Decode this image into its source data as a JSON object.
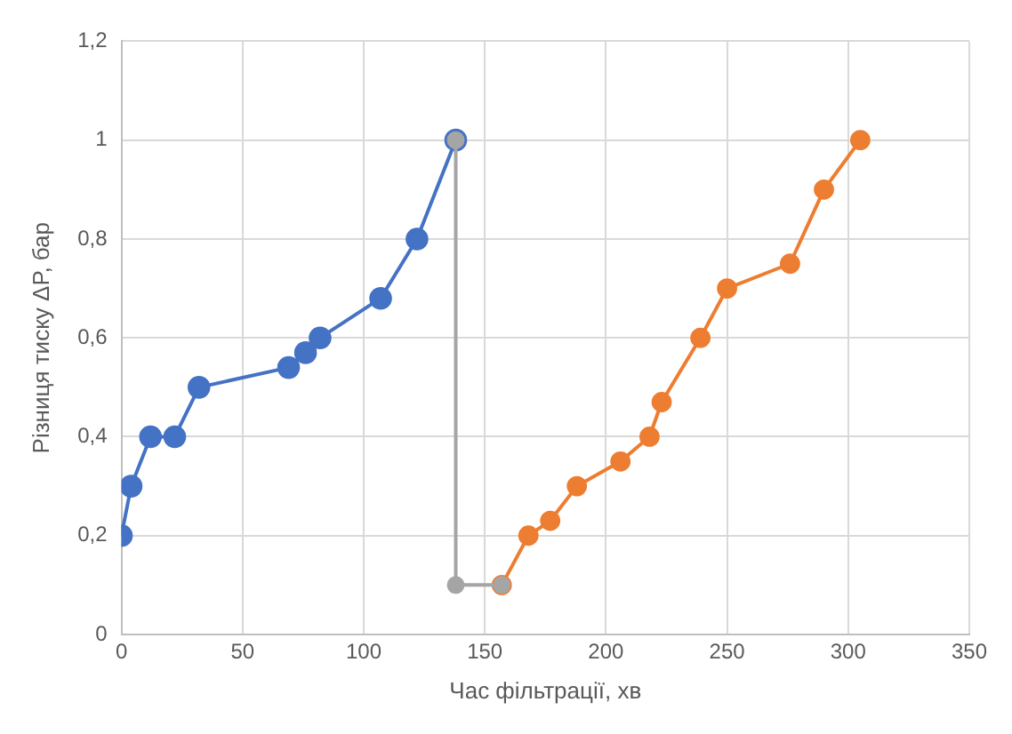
{
  "chart_data": {
    "type": "line",
    "xlabel": "Час фільтрації, хв",
    "ylabel": "Різниця тиску ΔP, бар",
    "xlim": [
      0,
      350
    ],
    "xticks": [
      0,
      50,
      100,
      150,
      200,
      250,
      300,
      350
    ],
    "ylim": [
      0,
      1.2
    ],
    "yticks": [
      {
        "value": 0,
        "label": "0"
      },
      {
        "value": 0.2,
        "label": "0,2"
      },
      {
        "value": 0.4,
        "label": "0,4"
      },
      {
        "value": 0.6,
        "label": "0,6"
      },
      {
        "value": 0.8,
        "label": "0,8"
      },
      {
        "value": 1,
        "label": "1"
      },
      {
        "value": 1.2,
        "label": "1,2"
      }
    ],
    "grid": true,
    "legend": false,
    "marker": "circle",
    "line_style": "solid",
    "series": [
      {
        "color": "#4472c4",
        "x": [
          0,
          4,
          12,
          22,
          32,
          69,
          76,
          82,
          107,
          122,
          138
        ],
        "values": [
          0.2,
          0.3,
          0.4,
          0.4,
          0.5,
          0.54,
          0.57,
          0.6,
          0.68,
          0.8,
          1
        ]
      },
      {
        "color": "#ed7d31",
        "x": [
          157,
          168,
          177,
          188,
          206,
          218,
          223,
          239,
          250,
          276,
          290,
          305
        ],
        "values": [
          0.1,
          0.2,
          0.23,
          0.3,
          0.35,
          0.4,
          0.47,
          0.6,
          0.7,
          0.75,
          0.9,
          1
        ]
      },
      {
        "color": "#a5a5a5",
        "x": [
          138,
          138,
          157
        ],
        "values": [
          1,
          0.1,
          0.1
        ]
      }
    ]
  }
}
